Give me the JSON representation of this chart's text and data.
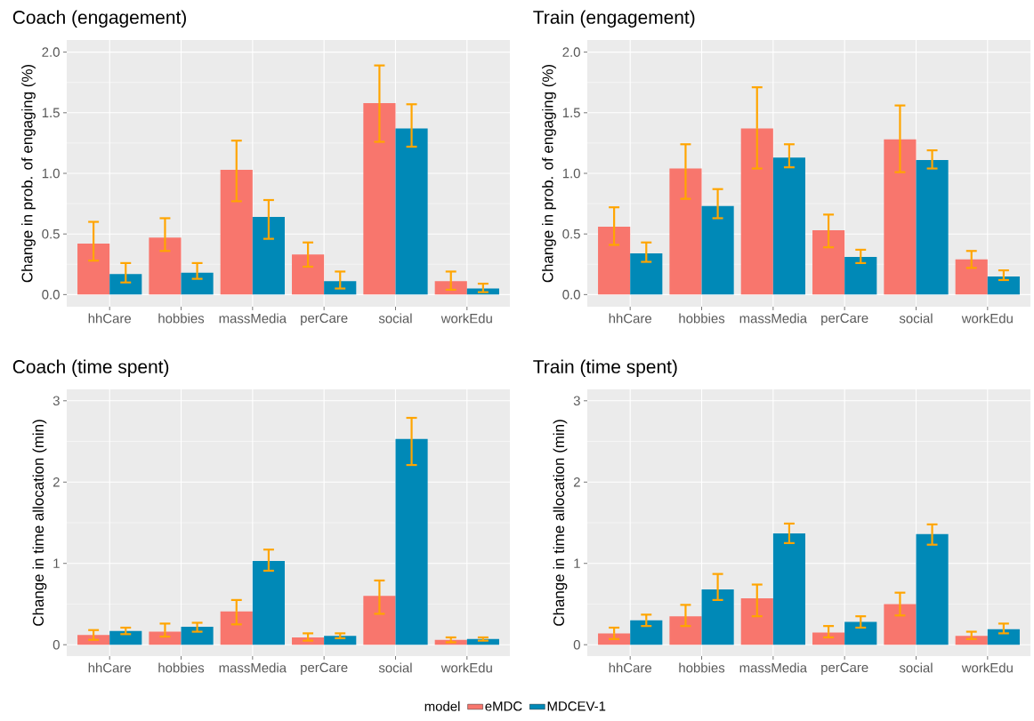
{
  "chart_data": [
    {
      "type": "bar",
      "title": "Coach (engagement)",
      "ylabel": "Change in prob. of engaging (%)",
      "categories": [
        "hhCare",
        "hobbies",
        "massMedia",
        "perCare",
        "social",
        "workEdu"
      ],
      "series": [
        {
          "color": "#f8766d",
          "values": [
            0.42,
            0.47,
            1.03,
            0.33,
            1.58,
            0.11
          ],
          "errors": [
            [
              0.28,
              0.6
            ],
            [
              0.36,
              0.63
            ],
            [
              0.77,
              1.27
            ],
            [
              0.23,
              0.43
            ],
            [
              1.26,
              1.89
            ],
            [
              0.04,
              0.19
            ]
          ]
        },
        {
          "color": "#0089b7",
          "values": [
            0.17,
            0.18,
            0.64,
            0.11,
            1.37,
            0.05
          ],
          "errors": [
            [
              0.1,
              0.26
            ],
            [
              0.13,
              0.26
            ],
            [
              0.46,
              0.78
            ],
            [
              0.05,
              0.19
            ],
            [
              1.22,
              1.57
            ],
            [
              0.02,
              0.09
            ]
          ]
        }
      ],
      "ylim": [
        -0.1,
        2.1
      ],
      "yticks": [
        {
          "value": 0,
          "label": "0.0"
        },
        {
          "value": 0.5,
          "label": "0.5"
        },
        {
          "value": 1,
          "label": "1.0"
        },
        {
          "value": 1.5,
          "label": "1.5"
        },
        {
          "value": 2,
          "label": "2.0"
        }
      ],
      "grid": true
    },
    {
      "type": "bar",
      "title": "Train (engagement)",
      "ylabel": "Change in prob. of engaging (%)",
      "categories": [
        "hhCare",
        "hobbies",
        "massMedia",
        "perCare",
        "social",
        "workEdu"
      ],
      "series": [
        {
          "color": "#f8766d",
          "values": [
            0.56,
            1.04,
            1.37,
            0.53,
            1.28,
            0.29
          ],
          "errors": [
            [
              0.41,
              0.72
            ],
            [
              0.79,
              1.24
            ],
            [
              1.04,
              1.71
            ],
            [
              0.39,
              0.66
            ],
            [
              1.01,
              1.56
            ],
            [
              0.22,
              0.36
            ]
          ]
        },
        {
          "color": "#0089b7",
          "values": [
            0.34,
            0.73,
            1.13,
            0.31,
            1.11,
            0.15
          ],
          "errors": [
            [
              0.27,
              0.43
            ],
            [
              0.63,
              0.87
            ],
            [
              1.05,
              1.24
            ],
            [
              0.26,
              0.37
            ],
            [
              1.04,
              1.19
            ],
            [
              0.12,
              0.2
            ]
          ]
        }
      ],
      "ylim": [
        -0.1,
        2.1
      ],
      "yticks": [
        {
          "value": 0,
          "label": "0.0"
        },
        {
          "value": 0.5,
          "label": "0.5"
        },
        {
          "value": 1,
          "label": "1.0"
        },
        {
          "value": 1.5,
          "label": "1.5"
        },
        {
          "value": 2,
          "label": "2.0"
        }
      ],
      "grid": true
    },
    {
      "type": "bar",
      "title": "Coach (time spent)",
      "ylabel": "Change in time allocation (min)",
      "categories": [
        "hhCare",
        "hobbies",
        "massMedia",
        "perCare",
        "social",
        "workEdu"
      ],
      "series": [
        {
          "name": "eMDC",
          "color": "#f8766d",
          "values": [
            0.12,
            0.16,
            0.41,
            0.09,
            0.6,
            0.06
          ],
          "errors": [
            [
              0.06,
              0.18
            ],
            [
              0.1,
              0.26
            ],
            [
              0.25,
              0.55
            ],
            [
              0.05,
              0.14
            ],
            [
              0.38,
              0.79
            ],
            [
              0.03,
              0.09
            ]
          ]
        },
        {
          "name": "MDCEV-1",
          "color": "#0089b7",
          "values": [
            0.17,
            0.22,
            1.03,
            0.11,
            2.53,
            0.07
          ],
          "errors": [
            [
              0.13,
              0.21
            ],
            [
              0.16,
              0.27
            ],
            [
              0.91,
              1.17
            ],
            [
              0.08,
              0.14
            ],
            [
              2.21,
              2.79
            ],
            [
              0.05,
              0.09
            ]
          ]
        }
      ],
      "ylim": [
        -0.14,
        3.14
      ],
      "yticks": [
        0,
        1,
        2,
        3
      ],
      "grid": true,
      "legend": "bottom",
      "legend_title": "model"
    },
    {
      "type": "bar",
      "title": "Train (time spent)",
      "ylabel": "Change in time allocation (min)",
      "categories": [
        "hhCare",
        "hobbies",
        "massMedia",
        "perCare",
        "social",
        "workEdu"
      ],
      "series": [
        {
          "color": "#f8766d",
          "values": [
            0.14,
            0.35,
            0.57,
            0.15,
            0.5,
            0.11
          ],
          "errors": [
            [
              0.07,
              0.21
            ],
            [
              0.23,
              0.49
            ],
            [
              0.35,
              0.74
            ],
            [
              0.09,
              0.23
            ],
            [
              0.36,
              0.64
            ],
            [
              0.07,
              0.16
            ]
          ]
        },
        {
          "color": "#0089b7",
          "values": [
            0.3,
            0.68,
            1.37,
            0.28,
            1.36,
            0.19
          ],
          "errors": [
            [
              0.23,
              0.37
            ],
            [
              0.55,
              0.87
            ],
            [
              1.25,
              1.49
            ],
            [
              0.21,
              0.35
            ],
            [
              1.23,
              1.48
            ],
            [
              0.14,
              0.26
            ]
          ]
        }
      ],
      "ylim": [
        -0.14,
        3.14
      ],
      "yticks": [
        0,
        1,
        2,
        3
      ],
      "grid": true
    }
  ]
}
